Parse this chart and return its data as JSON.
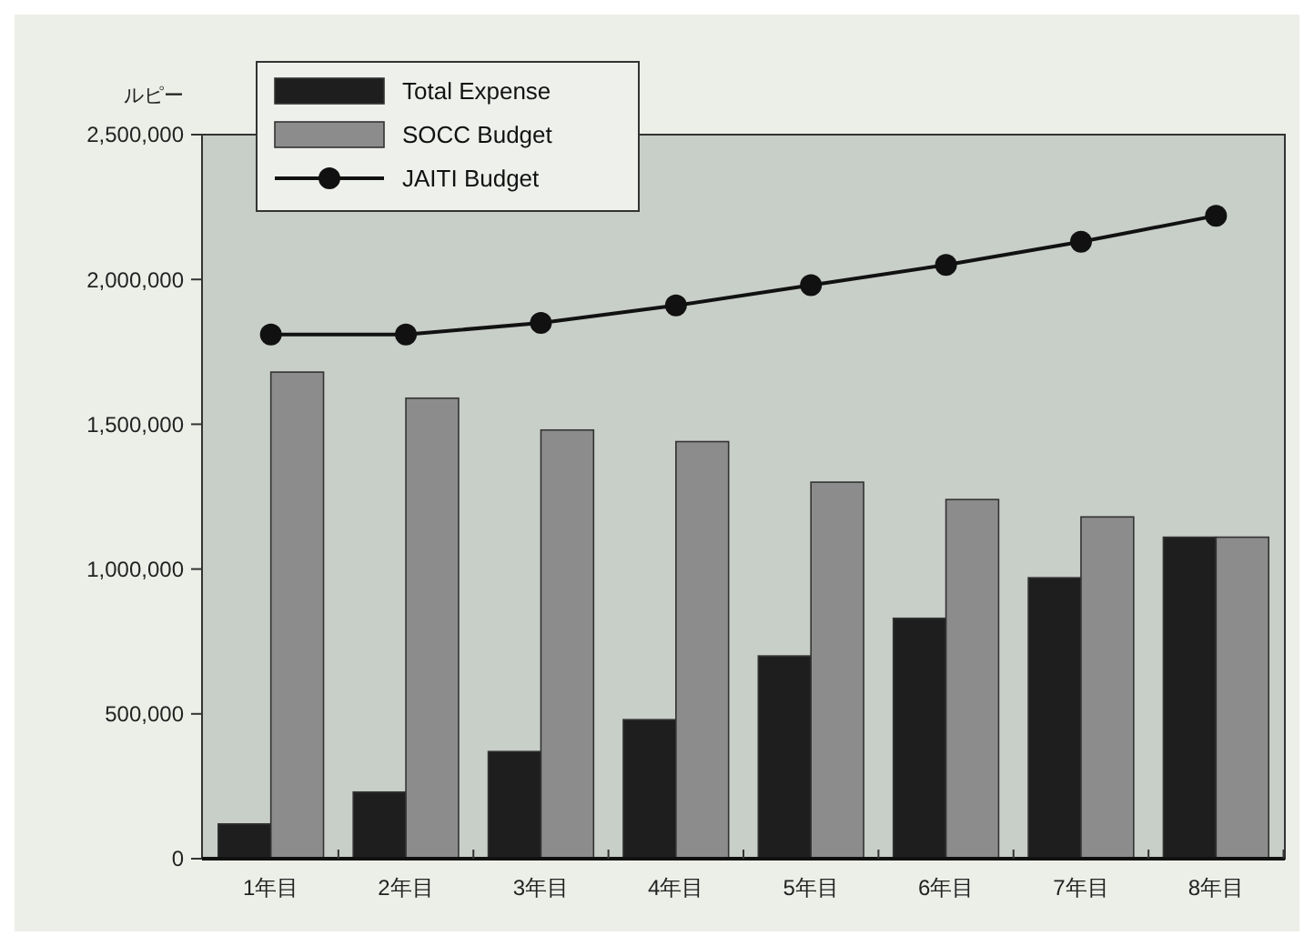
{
  "chart_data": {
    "type": "bar",
    "ylabel": "ルピー",
    "categories": [
      "1年目",
      "2年目",
      "3年目",
      "4年目",
      "5年目",
      "6年目",
      "7年目",
      "8年目"
    ],
    "series": [
      {
        "name": "Total Expense",
        "color": "#1e1e1e",
        "values": [
          120000,
          230000,
          370000,
          480000,
          700000,
          830000,
          970000,
          1110000
        ]
      },
      {
        "name": "SOCC Budget",
        "color": "#8c8c8c",
        "values": [
          1680000,
          1590000,
          1480000,
          1440000,
          1300000,
          1240000,
          1180000,
          1110000
        ]
      },
      {
        "name": "JAITI Budget",
        "type": "line",
        "color": "#111111",
        "marker": "circle",
        "values": [
          1810000,
          1810000,
          1850000,
          1910000,
          1980000,
          2050000,
          2130000,
          2220000
        ]
      }
    ],
    "ylim": [
      0,
      2500000
    ],
    "yticks": [
      {
        "value": 0,
        "label": "0"
      },
      {
        "value": 500000,
        "label": "500,000"
      },
      {
        "value": 1000000,
        "label": "1,000,000"
      },
      {
        "value": 1500000,
        "label": "1,500,000"
      },
      {
        "value": 2000000,
        "label": "2,000,000"
      },
      {
        "value": 2500000,
        "label": "2,500,000"
      }
    ],
    "grid": false,
    "legend": "top left"
  }
}
